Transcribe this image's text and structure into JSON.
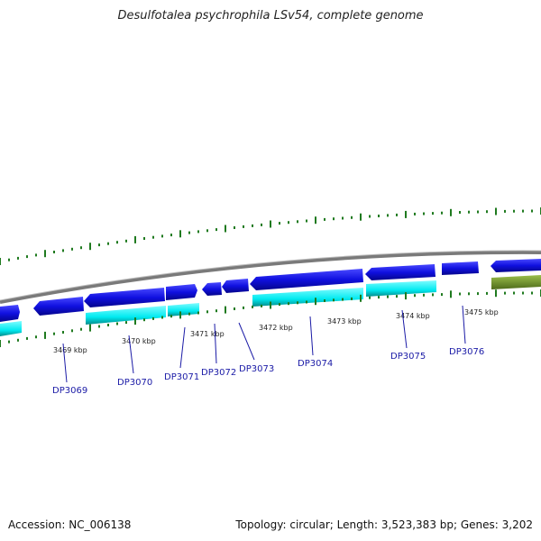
{
  "title": "Desulfotalea psychrophila LSv54, complete genome",
  "footer": {
    "accession": "Accession: NC_006138",
    "summary": "Topology: circular; Length: 3,523,383 bp; Genes: 3,202"
  },
  "colors": {
    "backbone": "#8a8a8a",
    "gene_forward": "#1010e0",
    "gene_reverse": "#00eaf0",
    "gene_rna": "#6b8e23",
    "tick": "#1f7a1f",
    "label": "#1a1aa6"
  },
  "scale_labels": [
    "3469 kbp",
    "3470 kbp",
    "3471 kbp",
    "3472 kbp",
    "3473 kbp",
    "3474 kbp",
    "3475 kbp"
  ],
  "genes": [
    "DP3069",
    "DP3070",
    "DP3071",
    "DP3072",
    "DP3073",
    "DP3074",
    "DP3075",
    "DP3076"
  ]
}
